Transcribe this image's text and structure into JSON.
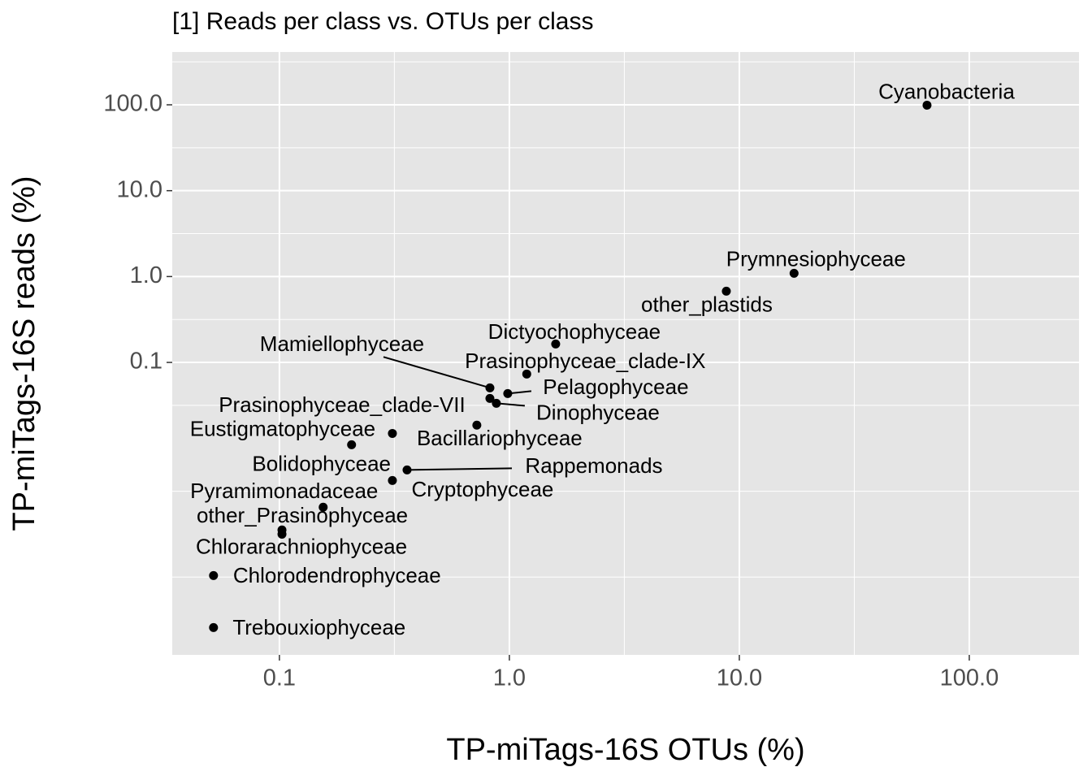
{
  "chart_data": {
    "type": "scatter",
    "title": "[1] Reads per class vs. OTUs per class",
    "xlabel": "TP-miTags-16S OTUs (%)",
    "ylabel": "TP-miTags-16S reads (%)",
    "labels": [
      "Cyanobacteria",
      "Prymnesiophyceae",
      "other_plastids",
      "Dictyochophyceae",
      "Prasinophyceae_clade-IX",
      "Mamiellophyceae",
      "Pelagophyceae",
      "Prasinophyceae_clade-VII",
      "Dinophyceae",
      "Bacillariophyceae",
      "Eustigmatophyceae",
      "Bolidophyceae",
      "Rappemonads",
      "Cryptophyceae",
      "Pyramimonadaceae",
      "other_Prasinophyceae",
      "Chlorarachniophyceae",
      "Chlorodendrophyceae",
      "Trebouxiophyceae"
    ],
    "x": [
      65.5,
      17.3,
      8.78,
      1.59,
      1.19,
      0.823,
      0.984,
      0.823,
      0.878,
      0.722,
      0.31,
      0.206,
      0.359,
      0.31,
      0.155,
      0.1026,
      0.1026,
      0.0517,
      0.0517
    ],
    "values": [
      99,
      1.09,
      0.675,
      0.164,
      0.0733,
      0.0506,
      0.0434,
      0.0381,
      0.0334,
      0.0186,
      0.0149,
      0.011,
      0.0056,
      0.00422,
      0.00206,
      0.00112,
      0.001,
      0.00033,
      8.18e-05
    ],
    "color": "#000000",
    "xlim": [
      0.0342,
      300
    ],
    "ylim": [
      3.93e-05,
      412
    ],
    "xticks": [
      0.1,
      {
        "value": 1,
        "label": "1.0"
      },
      {
        "value": 10,
        "label": "10.0"
      },
      {
        "value": 100,
        "label": "100.0"
      }
    ],
    "yticks": [
      0.1,
      {
        "value": 1,
        "label": "1.0"
      },
      {
        "value": 10,
        "label": "10.0"
      },
      {
        "value": 100,
        "label": "100.0"
      }
    ],
    "log_x": true,
    "log_y": true,
    "grid": true
  }
}
